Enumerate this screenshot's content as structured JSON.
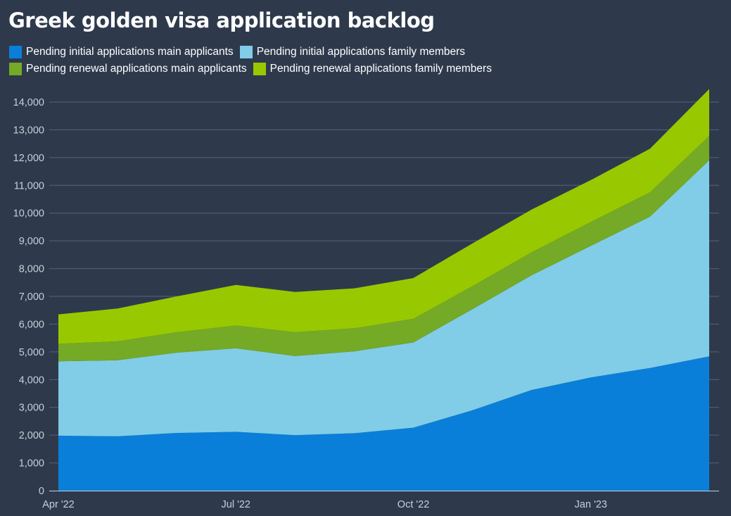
{
  "chart_data": {
    "type": "area",
    "stacked": true,
    "title": "Greek golden visa application backlog",
    "xlabel": "",
    "ylabel": "",
    "x": [
      "2022-04",
      "2022-05",
      "2022-06",
      "2022-07",
      "2022-08",
      "2022-09",
      "2022-10",
      "2022-11",
      "2022-12",
      "2023-01",
      "2023-02",
      "2023-03"
    ],
    "x_tick_labels": [
      "Apr '22",
      "Jul '22",
      "Oct '22",
      "Jan '23"
    ],
    "x_tick_positions": [
      "2022-04",
      "2022-07",
      "2022-10",
      "2023-01"
    ],
    "ylim": [
      0,
      14500
    ],
    "y_ticks": [
      0,
      1000,
      2000,
      3000,
      4000,
      5000,
      6000,
      7000,
      8000,
      9000,
      10000,
      11000,
      12000,
      13000,
      14000
    ],
    "y_tick_labels": [
      "0",
      "1,000",
      "2,000",
      "3,000",
      "4,000",
      "5,000",
      "6,000",
      "7,000",
      "8,000",
      "9,000",
      "10,000",
      "11,000",
      "12,000",
      "13,000",
      "14,000"
    ],
    "grid": true,
    "legend_position": "top-left",
    "series": [
      {
        "name": "Pending initial applications main applicants",
        "color": "#0a7fd9",
        "values": [
          1980,
          1960,
          2080,
          2120,
          2000,
          2070,
          2270,
          2900,
          3630,
          4080,
          4420,
          4840
        ]
      },
      {
        "name": "Pending initial applications family members",
        "color": "#81cde7",
        "values": [
          2680,
          2740,
          2890,
          3010,
          2850,
          2950,
          3070,
          3640,
          4130,
          4740,
          5450,
          7060
        ]
      },
      {
        "name": "Pending renewal applications main applicants",
        "color": "#74aa25",
        "values": [
          630,
          680,
          740,
          820,
          860,
          830,
          850,
          830,
          830,
          860,
          880,
          880
        ]
      },
      {
        "name": "Pending renewal applications family members",
        "color": "#98c900",
        "values": [
          1060,
          1180,
          1290,
          1460,
          1450,
          1440,
          1470,
          1540,
          1540,
          1510,
          1570,
          1690
        ]
      }
    ]
  }
}
